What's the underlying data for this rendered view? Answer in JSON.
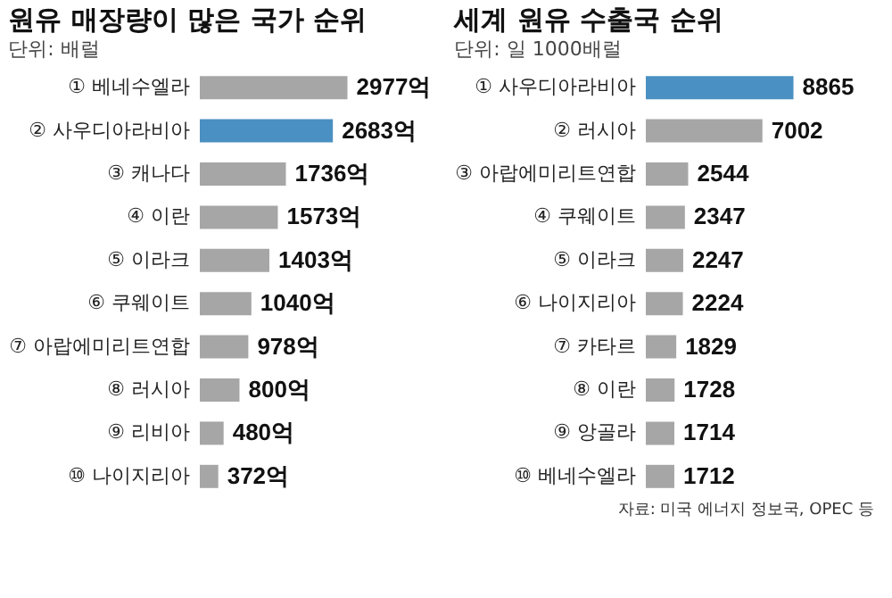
{
  "chart_data": [
    {
      "type": "bar",
      "orientation": "horizontal",
      "title": "원유 매장량이 많은 국가 순위",
      "subtitle": "단위: 배럴",
      "tick_labels": "y",
      "categories": [
        "① 베네수엘라",
        "② 사우디아라비아",
        "③ 캐나다",
        "④ 이란",
        "⑤ 이라크",
        "⑥ 쿠웨이트",
        "⑦ 아랍에미리트연합",
        "⑧ 러시아",
        "⑨ 리비아",
        "⑩ 나이지리아"
      ],
      "values": [
        2977,
        2683,
        1736,
        1573,
        1403,
        1040,
        978,
        800,
        480,
        372
      ],
      "value_labels": [
        "2977억",
        "2683억",
        "1736억",
        "1573억",
        "1403억",
        "1040억",
        "978억",
        "800억",
        "480억",
        "372억"
      ],
      "colors": [
        "#a6a6a6",
        "#4a90c2",
        "#a6a6a6",
        "#a6a6a6",
        "#a6a6a6",
        "#a6a6a6",
        "#a6a6a6",
        "#a6a6a6",
        "#a6a6a6",
        "#a6a6a6"
      ]
    },
    {
      "type": "bar",
      "orientation": "horizontal",
      "title": "세계 원유 수출국 순위",
      "subtitle": "단위: 일 1000배럴",
      "tick_labels": "y",
      "categories": [
        "① 사우디아라비아",
        "② 러시아",
        "③ 아랍에미리트연합",
        "④ 쿠웨이트",
        "⑤ 이라크",
        "⑥ 나이지리아",
        "⑦ 카타르",
        "⑧ 이란",
        "⑨ 앙골라",
        "⑩ 베네수엘라"
      ],
      "values": [
        8865,
        7002,
        2544,
        2347,
        2247,
        2224,
        1829,
        1728,
        1714,
        1712
      ],
      "data_labels": true,
      "colors": [
        "#4a90c2",
        "#a6a6a6",
        "#a6a6a6",
        "#a6a6a6",
        "#a6a6a6",
        "#a6a6a6",
        "#a6a6a6",
        "#a6a6a6",
        "#a6a6a6",
        "#a6a6a6"
      ],
      "annotations": [
        "자료: 미국 에너지 정보국, OPEC 등"
      ]
    }
  ]
}
